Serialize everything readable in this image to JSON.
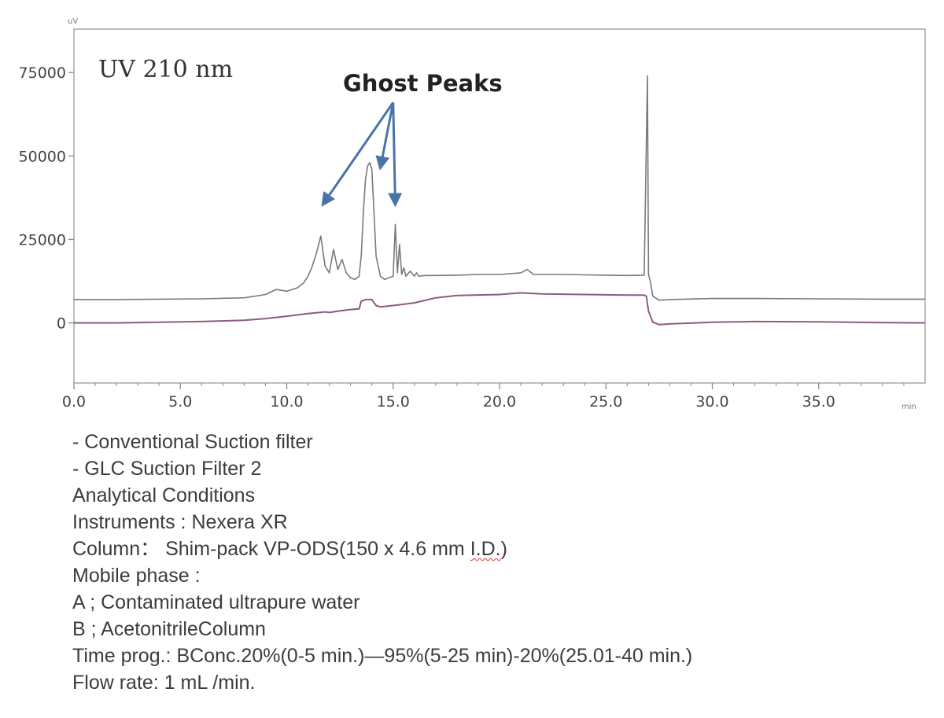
{
  "chart_data": {
    "type": "line",
    "y_unit": "uV",
    "x_unit": "min",
    "xlim": [
      0,
      40
    ],
    "ylim": [
      -18000,
      88000
    ],
    "x_ticks": [
      "0.0",
      "5.0",
      "10.0",
      "15.0",
      "20.0",
      "25.0",
      "30.0",
      "35.0"
    ],
    "x_tick_values": [
      0,
      5,
      10,
      15,
      20,
      25,
      30,
      35
    ],
    "y_ticks": [
      "75000",
      "50000",
      "25000",
      "0"
    ],
    "y_tick_values": [
      75000,
      50000,
      25000,
      0
    ],
    "inset_title": "UV 210 nm",
    "annotation": {
      "text": "Ghost Peaks",
      "arrow_targets": [
        [
          11.7,
          35500
        ],
        [
          14.4,
          46500
        ],
        [
          15.1,
          35500
        ]
      ],
      "arrow_origin": [
        15.0,
        66000
      ]
    },
    "series": [
      {
        "color": "#7a7a7a",
        "x": [
          0,
          2,
          4,
          6,
          8,
          9,
          9.5,
          10,
          10.5,
          10.8,
          11.0,
          11.2,
          11.4,
          11.6,
          11.8,
          12.0,
          12.2,
          12.4,
          12.6,
          12.8,
          13.0,
          13.2,
          13.4,
          13.5,
          13.6,
          13.7,
          13.8,
          13.9,
          14.0,
          14.1,
          14.2,
          14.4,
          14.6,
          14.8,
          15.0,
          15.1,
          15.2,
          15.3,
          15.4,
          15.5,
          15.6,
          15.8,
          16.0,
          16.1,
          16.2,
          16.5,
          17.0,
          18.0,
          19.0,
          20.0,
          21.0,
          21.3,
          21.6,
          22.0,
          23.0,
          24.0,
          25.0,
          26.0,
          26.8,
          26.95,
          27.0,
          27.1,
          27.2,
          27.5,
          28.0,
          30.0,
          32.0,
          35.0,
          38.0,
          40.0
        ],
        "y": [
          7000,
          7000,
          7100,
          7200,
          7500,
          8500,
          10000,
          9500,
          10500,
          12000,
          14000,
          17000,
          21000,
          26000,
          17000,
          15000,
          22000,
          16000,
          19000,
          15000,
          13500,
          13000,
          14000,
          20000,
          33000,
          43000,
          47000,
          48000,
          46000,
          33000,
          20000,
          14000,
          13000,
          13500,
          14000,
          29500,
          15000,
          23500,
          14500,
          16500,
          14000,
          15500,
          14000,
          15000,
          14000,
          14200,
          14200,
          14300,
          14500,
          14500,
          15000,
          16000,
          14500,
          14500,
          14500,
          14400,
          14300,
          14200,
          14300,
          74000,
          14500,
          12000,
          8000,
          6800,
          7000,
          7300,
          7300,
          7200,
          7100,
          7100
        ]
      },
      {
        "color": "#8e5a82",
        "x": [
          0,
          2,
          4,
          6,
          8,
          9,
          10,
          11,
          11.8,
          12.0,
          12.5,
          13.0,
          13.4,
          13.5,
          13.7,
          14.0,
          14.2,
          14.4,
          15,
          16,
          17,
          18,
          20,
          21,
          22,
          24,
          25,
          26,
          26.8,
          26.9,
          27.0,
          27.2,
          27.5,
          28,
          30,
          32,
          35,
          38,
          40
        ],
        "y": [
          0,
          0,
          200,
          400,
          800,
          1300,
          2000,
          2800,
          3300,
          3100,
          3600,
          4000,
          4200,
          6500,
          7000,
          7000,
          5200,
          4800,
          5200,
          6000,
          7500,
          8200,
          8500,
          9000,
          8700,
          8500,
          8400,
          8300,
          8300,
          8000,
          3500,
          200,
          -500,
          -300,
          200,
          400,
          300,
          100,
          0
        ]
      }
    ]
  },
  "conditions": {
    "line1": "- Conventional Suction filter",
    "line2": "- GLC Suction Filter 2",
    "line3": "Analytical Conditions",
    "line4": "Instruments : Nexera XR",
    "line5_prefix": "Column： Shim-pack VP-ODS(150 x 4.6 mm ",
    "line5_squiggle": "I.D.",
    "line5_suffix": ")",
    "line6": "Mobile phase :",
    "line7": "A ; Contaminated ultrapure water",
    "line8": "B ; AcetonitrileColumn",
    "line9": "Time prog.: BConc.20%(0-5 min.)—95%(5-25 min)-20%(25.01-40 min.)",
    "line10": "Flow rate: 1 mL /min."
  },
  "colors": {
    "axis": "#8a8a8a",
    "arrow": "#4a73a8"
  }
}
